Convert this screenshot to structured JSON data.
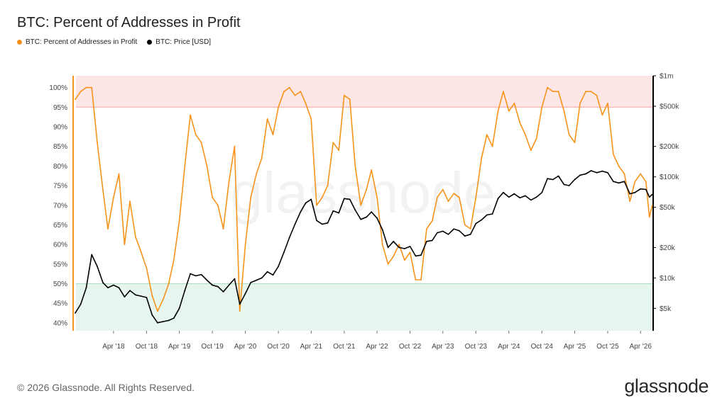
{
  "chart_data": {
    "type": "line",
    "title": "BTC: Percent of Addresses in Profit",
    "legend_placement": "top-left",
    "grid": false,
    "series": [
      {
        "name": "BTC: Percent of Addresses in Profit",
        "color": "#f7931a",
        "axis": "left",
        "points": [
          [
            "2017-09-01",
            97
          ],
          [
            "2017-10-01",
            99
          ],
          [
            "2017-11-01",
            100
          ],
          [
            "2017-12-01",
            100
          ],
          [
            "2018-01-01",
            86
          ],
          [
            "2018-02-01",
            74
          ],
          [
            "2018-03-01",
            64
          ],
          [
            "2018-04-01",
            72
          ],
          [
            "2018-05-01",
            78
          ],
          [
            "2018-06-01",
            60
          ],
          [
            "2018-07-01",
            71
          ],
          [
            "2018-08-01",
            62
          ],
          [
            "2018-09-01",
            58
          ],
          [
            "2018-10-01",
            54
          ],
          [
            "2018-11-01",
            47
          ],
          [
            "2018-12-01",
            43
          ],
          [
            "2019-01-01",
            46
          ],
          [
            "2019-02-01",
            50
          ],
          [
            "2019-03-01",
            56
          ],
          [
            "2019-04-01",
            66
          ],
          [
            "2019-05-01",
            80
          ],
          [
            "2019-06-01",
            93
          ],
          [
            "2019-07-01",
            88
          ],
          [
            "2019-08-01",
            86
          ],
          [
            "2019-09-01",
            80
          ],
          [
            "2019-10-01",
            72
          ],
          [
            "2019-11-01",
            70
          ],
          [
            "2019-12-01",
            64
          ],
          [
            "2020-01-01",
            76
          ],
          [
            "2020-02-01",
            85
          ],
          [
            "2020-03-01",
            43
          ],
          [
            "2020-04-01",
            60
          ],
          [
            "2020-05-01",
            72
          ],
          [
            "2020-06-01",
            78
          ],
          [
            "2020-07-01",
            82
          ],
          [
            "2020-08-01",
            92
          ],
          [
            "2020-09-01",
            88
          ],
          [
            "2020-10-01",
            95
          ],
          [
            "2020-11-01",
            99
          ],
          [
            "2020-12-01",
            100
          ],
          [
            "2021-01-01",
            98
          ],
          [
            "2021-02-01",
            99
          ],
          [
            "2021-03-01",
            96
          ],
          [
            "2021-04-01",
            92
          ],
          [
            "2021-05-01",
            70
          ],
          [
            "2021-06-01",
            72
          ],
          [
            "2021-07-01",
            75
          ],
          [
            "2021-08-01",
            86
          ],
          [
            "2021-09-01",
            84
          ],
          [
            "2021-10-01",
            98
          ],
          [
            "2021-11-01",
            97
          ],
          [
            "2021-12-01",
            80
          ],
          [
            "2022-01-01",
            70
          ],
          [
            "2022-02-01",
            74
          ],
          [
            "2022-03-01",
            79
          ],
          [
            "2022-04-01",
            72
          ],
          [
            "2022-05-01",
            60
          ],
          [
            "2022-06-01",
            55
          ],
          [
            "2022-07-01",
            57
          ],
          [
            "2022-08-01",
            60
          ],
          [
            "2022-09-01",
            56
          ],
          [
            "2022-10-01",
            58
          ],
          [
            "2022-11-01",
            51
          ],
          [
            "2022-12-01",
            51
          ],
          [
            "2023-01-01",
            64
          ],
          [
            "2023-02-01",
            66
          ],
          [
            "2023-03-01",
            72
          ],
          [
            "2023-04-01",
            74
          ],
          [
            "2023-05-01",
            71
          ],
          [
            "2023-06-01",
            73
          ],
          [
            "2023-07-01",
            72
          ],
          [
            "2023-08-01",
            65
          ],
          [
            "2023-09-01",
            64
          ],
          [
            "2023-10-01",
            72
          ],
          [
            "2023-11-01",
            82
          ],
          [
            "2023-12-01",
            88
          ],
          [
            "2024-01-01",
            85
          ],
          [
            "2024-02-01",
            94
          ],
          [
            "2024-03-01",
            99
          ],
          [
            "2024-04-01",
            94
          ],
          [
            "2024-05-01",
            96
          ],
          [
            "2024-06-01",
            91
          ],
          [
            "2024-07-01",
            88
          ],
          [
            "2024-08-01",
            84
          ],
          [
            "2024-09-01",
            87
          ],
          [
            "2024-10-01",
            95
          ],
          [
            "2024-11-01",
            100
          ],
          [
            "2024-12-01",
            99
          ],
          [
            "2025-01-01",
            99
          ],
          [
            "2025-02-01",
            94
          ],
          [
            "2025-03-01",
            88
          ],
          [
            "2025-04-01",
            86
          ],
          [
            "2025-05-01",
            96
          ],
          [
            "2025-06-01",
            99
          ],
          [
            "2025-07-01",
            99
          ],
          [
            "2025-08-01",
            98
          ],
          [
            "2025-09-01",
            93
          ],
          [
            "2025-10-01",
            96
          ],
          [
            "2025-11-01",
            83
          ],
          [
            "2025-12-01",
            80
          ],
          [
            "2026-01-01",
            78
          ],
          [
            "2026-02-01",
            71
          ],
          [
            "2026-03-01",
            76
          ],
          [
            "2026-04-01",
            78
          ],
          [
            "2026-05-01",
            76
          ],
          [
            "2026-05-20",
            67
          ],
          [
            "2026-06-05",
            70
          ]
        ]
      },
      {
        "name": "BTC: Price [USD]",
        "color": "#000000",
        "axis": "right",
        "scale": "log",
        "points": [
          [
            "2017-09-01",
            4500
          ],
          [
            "2017-10-01",
            5500
          ],
          [
            "2017-11-01",
            8000
          ],
          [
            "2017-12-01",
            17000
          ],
          [
            "2018-01-01",
            13000
          ],
          [
            "2018-02-01",
            9000
          ],
          [
            "2018-03-01",
            8000
          ],
          [
            "2018-04-01",
            8500
          ],
          [
            "2018-05-01",
            8000
          ],
          [
            "2018-06-01",
            6500
          ],
          [
            "2018-07-01",
            7500
          ],
          [
            "2018-08-01",
            6800
          ],
          [
            "2018-09-01",
            6600
          ],
          [
            "2018-10-01",
            6400
          ],
          [
            "2018-11-01",
            4300
          ],
          [
            "2018-12-01",
            3600
          ],
          [
            "2019-01-01",
            3700
          ],
          [
            "2019-02-01",
            3800
          ],
          [
            "2019-03-01",
            4000
          ],
          [
            "2019-04-01",
            5000
          ],
          [
            "2019-05-01",
            7500
          ],
          [
            "2019-06-01",
            11000
          ],
          [
            "2019-07-01",
            10500
          ],
          [
            "2019-08-01",
            10800
          ],
          [
            "2019-09-01",
            9500
          ],
          [
            "2019-10-01",
            8500
          ],
          [
            "2019-11-01",
            8200
          ],
          [
            "2019-12-01",
            7300
          ],
          [
            "2020-01-01",
            8500
          ],
          [
            "2020-02-01",
            9800
          ],
          [
            "2020-03-01",
            5500
          ],
          [
            "2020-04-01",
            7000
          ],
          [
            "2020-05-01",
            9000
          ],
          [
            "2020-06-01",
            9500
          ],
          [
            "2020-07-01",
            10000
          ],
          [
            "2020-08-01",
            11500
          ],
          [
            "2020-09-01",
            10700
          ],
          [
            "2020-10-01",
            13000
          ],
          [
            "2020-11-01",
            18000
          ],
          [
            "2020-12-01",
            25000
          ],
          [
            "2021-01-01",
            34000
          ],
          [
            "2021-02-01",
            45000
          ],
          [
            "2021-03-01",
            55000
          ],
          [
            "2021-04-01",
            60000
          ],
          [
            "2021-05-01",
            37000
          ],
          [
            "2021-06-01",
            34000
          ],
          [
            "2021-07-01",
            35000
          ],
          [
            "2021-08-01",
            46000
          ],
          [
            "2021-09-01",
            44000
          ],
          [
            "2021-10-01",
            61000
          ],
          [
            "2021-11-01",
            60000
          ],
          [
            "2021-12-01",
            47000
          ],
          [
            "2022-01-01",
            38000
          ],
          [
            "2022-02-01",
            40000
          ],
          [
            "2022-03-01",
            45000
          ],
          [
            "2022-04-01",
            39000
          ],
          [
            "2022-05-01",
            30000
          ],
          [
            "2022-06-01",
            20000
          ],
          [
            "2022-07-01",
            23000
          ],
          [
            "2022-08-01",
            20000
          ],
          [
            "2022-09-01",
            19500
          ],
          [
            "2022-10-01",
            20500
          ],
          [
            "2022-11-01",
            16500
          ],
          [
            "2022-12-01",
            16800
          ],
          [
            "2023-01-01",
            23000
          ],
          [
            "2023-02-01",
            23500
          ],
          [
            "2023-03-01",
            28000
          ],
          [
            "2023-04-01",
            29000
          ],
          [
            "2023-05-01",
            27000
          ],
          [
            "2023-06-01",
            30500
          ],
          [
            "2023-07-01",
            29300
          ],
          [
            "2023-08-01",
            26000
          ],
          [
            "2023-09-01",
            27000
          ],
          [
            "2023-10-01",
            34500
          ],
          [
            "2023-11-01",
            37500
          ],
          [
            "2023-12-01",
            42000
          ],
          [
            "2024-01-01",
            43000
          ],
          [
            "2024-02-01",
            61000
          ],
          [
            "2024-03-01",
            70000
          ],
          [
            "2024-04-01",
            63000
          ],
          [
            "2024-05-01",
            68000
          ],
          [
            "2024-06-01",
            62000
          ],
          [
            "2024-07-01",
            65000
          ],
          [
            "2024-08-01",
            59000
          ],
          [
            "2024-09-01",
            63000
          ],
          [
            "2024-10-01",
            70000
          ],
          [
            "2024-11-01",
            96000
          ],
          [
            "2024-12-01",
            94000
          ],
          [
            "2025-01-01",
            102000
          ],
          [
            "2025-02-01",
            84000
          ],
          [
            "2025-03-01",
            82000
          ],
          [
            "2025-04-01",
            94000
          ],
          [
            "2025-05-01",
            104000
          ],
          [
            "2025-06-01",
            107000
          ],
          [
            "2025-07-01",
            115000
          ],
          [
            "2025-08-01",
            110000
          ],
          [
            "2025-09-01",
            114000
          ],
          [
            "2025-10-01",
            110000
          ],
          [
            "2025-11-01",
            90000
          ],
          [
            "2025-12-01",
            87000
          ],
          [
            "2026-01-01",
            90000
          ],
          [
            "2026-02-01",
            68000
          ],
          [
            "2026-03-01",
            70000
          ],
          [
            "2026-04-01",
            76000
          ],
          [
            "2026-05-01",
            75000
          ],
          [
            "2026-05-20",
            63000
          ],
          [
            "2026-06-05",
            67000
          ]
        ]
      }
    ],
    "y_left": {
      "range": [
        38,
        103
      ],
      "ticks": [
        40,
        45,
        50,
        55,
        60,
        65,
        70,
        75,
        80,
        85,
        90,
        95,
        100
      ],
      "tick_labels": [
        "40%",
        "45%",
        "50%",
        "55%",
        "60%",
        "65%",
        "70%",
        "75%",
        "80%",
        "85%",
        "90%",
        "95%",
        "100%"
      ]
    },
    "y_right": {
      "scale": "log",
      "range": [
        3000,
        1000000
      ],
      "ticks": [
        5000,
        10000,
        20000,
        50000,
        100000,
        200000,
        500000,
        1000000
      ],
      "tick_labels": [
        "$5k",
        "$10k",
        "$20k",
        "$50k",
        "$100k",
        "$200k",
        "$500k",
        "$1m"
      ]
    },
    "x": {
      "range": [
        "2017-08-20",
        "2026-06-10"
      ],
      "ticks": [
        "2018-04-01",
        "2018-10-01",
        "2019-04-01",
        "2019-10-01",
        "2020-04-01",
        "2020-10-01",
        "2021-04-01",
        "2021-10-01",
        "2022-04-01",
        "2022-10-01",
        "2023-04-01",
        "2023-10-01",
        "2024-04-01",
        "2024-10-01",
        "2025-04-01",
        "2025-10-01",
        "2026-04-01"
      ],
      "tick_labels": [
        "Apr '18",
        "Oct '18",
        "Apr '19",
        "Oct '19",
        "Apr '20",
        "Oct '20",
        "Apr '21",
        "Oct '21",
        "Apr '22",
        "Oct '22",
        "Apr '23",
        "Oct '23",
        "Apr '24",
        "Oct '24",
        "Apr '25",
        "Oct '25",
        "Apr '26"
      ]
    },
    "bands": [
      {
        "from": 95,
        "to": 103,
        "color": "#fde6e6",
        "line_color": "#f2a3a3"
      },
      {
        "from": 38,
        "to": 50,
        "color": "#e6f6ee",
        "line_color": "#a9dcc0"
      }
    ],
    "watermark": "glassnode"
  },
  "legend": [
    {
      "label": "BTC: Percent of Addresses in Profit",
      "color": "#f7931a"
    },
    {
      "label": "BTC: Price [USD]",
      "color": "#000000"
    }
  ],
  "footer": {
    "copyright": "© 2026 Glassnode. All Rights Reserved.",
    "brand": "glassnode"
  }
}
